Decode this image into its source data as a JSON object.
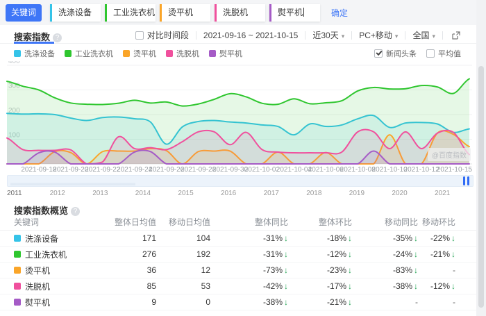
{
  "toolbar": {
    "keyword_label": "关键词",
    "confirm_label": "确定",
    "tags": [
      {
        "label": "洗涤设备",
        "color": "#35c3e8"
      },
      {
        "label": "工业洗衣机",
        "color": "#2fc62f"
      },
      {
        "label": "烫平机",
        "color": "#faa529"
      },
      {
        "label": "洗脱机",
        "color": "#f0509d"
      },
      {
        "label": "熨平机",
        "color": "#a55bc6"
      }
    ]
  },
  "panel": {
    "title": "搜索指数",
    "compare_label": "对比时间段",
    "date_range": "2021-09-16 ~ 2021-10-15",
    "range_select": "近30天",
    "device_select": "PC+移动",
    "region_select": "全国",
    "legend_checks": [
      {
        "label": "新闻头条",
        "checked": true
      },
      {
        "label": "平均值",
        "checked": false
      }
    ],
    "watermark": "@百度指数"
  },
  "chart_data": {
    "type": "line",
    "title": "搜索指数",
    "ylabel": "",
    "xlabel": "",
    "ylim": [
      0,
      400
    ],
    "yticks": [
      100,
      200,
      300,
      400
    ],
    "grid": "horizontal",
    "legend_position": "top-left",
    "x": [
      "2021-09-16",
      "2021-09-17",
      "2021-09-18",
      "2021-09-19",
      "2021-09-20",
      "2021-09-21",
      "2021-09-22",
      "2021-09-23",
      "2021-09-24",
      "2021-09-25",
      "2021-09-26",
      "2021-09-27",
      "2021-09-28",
      "2021-09-29",
      "2021-09-30",
      "2021-10-01",
      "2021-10-02",
      "2021-10-03",
      "2021-10-04",
      "2021-10-05",
      "2021-10-06",
      "2021-10-07",
      "2021-10-08",
      "2021-10-09",
      "2021-10-10",
      "2021-10-11",
      "2021-10-12",
      "2021-10-13",
      "2021-10-14",
      "2021-10-15"
    ],
    "xticks": [
      {
        "label": "2021-09-18",
        "i": 2
      },
      {
        "label": "2021-09-20",
        "i": 4
      },
      {
        "label": "2021-09-22",
        "i": 6
      },
      {
        "label": "2021-09-24",
        "i": 8
      },
      {
        "label": "2021-09-26",
        "i": 10
      },
      {
        "label": "2021-09-28",
        "i": 12
      },
      {
        "label": "2021-09-30",
        "i": 14
      },
      {
        "label": "2021-10-02",
        "i": 16
      },
      {
        "label": "2021-10-04",
        "i": 18
      },
      {
        "label": "2021-10-06",
        "i": 20
      },
      {
        "label": "2021-10-08",
        "i": 22
      },
      {
        "label": "2021-10-10",
        "i": 24
      },
      {
        "label": "2021-10-12",
        "i": 26
      },
      {
        "label": "2021-10-15",
        "i": 29
      }
    ],
    "series": [
      {
        "name": "洗涤设备",
        "color": "#35c3e8",
        "values": [
          205,
          202,
          203,
          200,
          186,
          176,
          188,
          190,
          183,
          170,
          80,
          150,
          172,
          176,
          170,
          166,
          158,
          152,
          118,
          162,
          152,
          158,
          183,
          196,
          148,
          166,
          168,
          162,
          128,
          142
        ]
      },
      {
        "name": "工业洗衣机",
        "color": "#2fc62f",
        "values": [
          335,
          315,
          300,
          268,
          247,
          242,
          241,
          246,
          258,
          247,
          251,
          235,
          243,
          262,
          285,
          272,
          246,
          242,
          264,
          244,
          248,
          256,
          296,
          310,
          304,
          305,
          318,
          312,
          286,
          345
        ]
      },
      {
        "name": "烫平机",
        "color": "#faa529",
        "values": [
          0,
          0,
          0,
          50,
          46,
          0,
          50,
          52,
          52,
          62,
          54,
          0,
          50,
          52,
          52,
          0,
          0,
          48,
          0,
          0,
          46,
          0,
          0,
          0,
          118,
          0,
          0,
          125,
          120,
          70
        ]
      },
      {
        "name": "洗脱机",
        "color": "#f0509d",
        "values": [
          105,
          58,
          55,
          55,
          57,
          0,
          8,
          110,
          62,
          66,
          58,
          90,
          130,
          130,
          78,
          128,
          58,
          48,
          45,
          45,
          45,
          48,
          130,
          130,
          62,
          130,
          62,
          125,
          128,
          38
        ]
      },
      {
        "name": "熨平机",
        "color": "#a55bc6",
        "values": [
          0,
          0,
          45,
          48,
          0,
          0,
          0,
          0,
          48,
          50,
          0,
          0,
          0,
          0,
          0,
          0,
          0,
          0,
          0,
          0,
          0,
          0,
          0,
          52,
          0,
          0,
          0,
          0,
          0,
          0
        ]
      }
    ]
  },
  "timeline": {
    "years": [
      "2011",
      "2012",
      "2013",
      "2014",
      "2015",
      "2016",
      "2017",
      "2018",
      "2019",
      "2020",
      "2021"
    ]
  },
  "overview": {
    "title": "搜索指数概览",
    "columns": [
      "关键词",
      "整体日均值",
      "移动日均值",
      "整体同比",
      "整体环比",
      "移动同比",
      "移动环比"
    ],
    "rows": [
      {
        "keyword": "洗涤设备",
        "color": "#35c3e8",
        "overall_avg": "171",
        "mobile_avg": "104",
        "trends": [
          {
            "t": "-31%",
            "d": "down"
          },
          {
            "t": "-18%",
            "d": "down"
          },
          {
            "t": "-35%",
            "d": "down"
          },
          {
            "t": "-22%",
            "d": "down"
          }
        ]
      },
      {
        "keyword": "工业洗衣机",
        "color": "#2fc62f",
        "overall_avg": "276",
        "mobile_avg": "192",
        "trends": [
          {
            "t": "-31%",
            "d": "down"
          },
          {
            "t": "-12%",
            "d": "down"
          },
          {
            "t": "-24%",
            "d": "down"
          },
          {
            "t": "-21%",
            "d": "down"
          }
        ]
      },
      {
        "keyword": "烫平机",
        "color": "#faa529",
        "overall_avg": "36",
        "mobile_avg": "12",
        "trends": [
          {
            "t": "-73%",
            "d": "down"
          },
          {
            "t": "-23%",
            "d": "down"
          },
          {
            "t": "-83%",
            "d": "down"
          },
          {
            "t": "-"
          }
        ]
      },
      {
        "keyword": "洗脱机",
        "color": "#f0509d",
        "overall_avg": "85",
        "mobile_avg": "53",
        "trends": [
          {
            "t": "-42%",
            "d": "down"
          },
          {
            "t": "-17%",
            "d": "down"
          },
          {
            "t": "-38%",
            "d": "down"
          },
          {
            "t": "-12%",
            "d": "down"
          }
        ]
      },
      {
        "keyword": "熨平机",
        "color": "#a55bc6",
        "overall_avg": "9",
        "mobile_avg": "0",
        "trends": [
          {
            "t": "-38%",
            "d": "down"
          },
          {
            "t": "-21%",
            "d": "down"
          },
          {
            "t": "-"
          },
          {
            "t": "-"
          }
        ]
      }
    ]
  }
}
